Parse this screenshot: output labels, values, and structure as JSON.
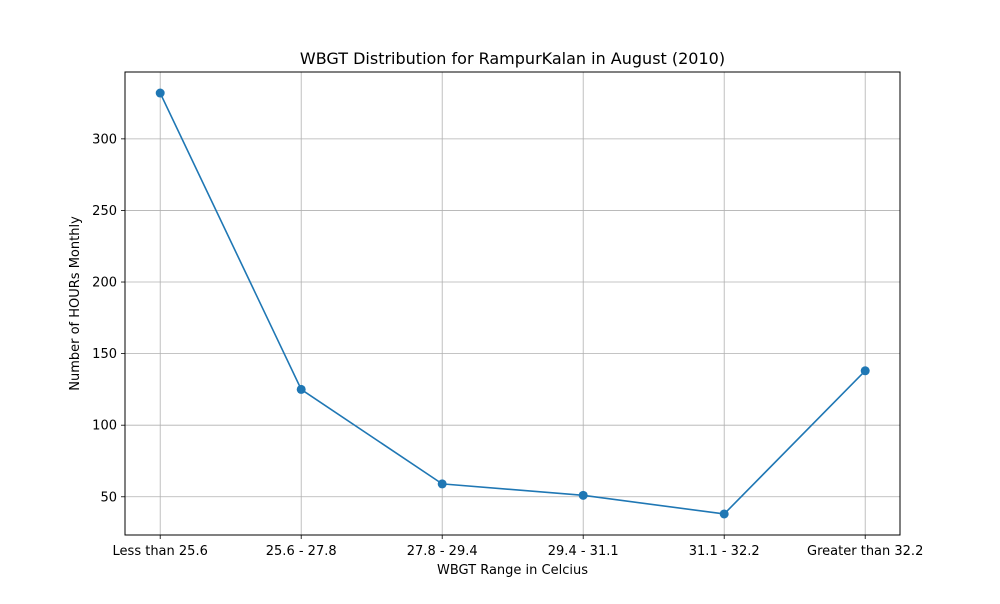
{
  "chart_data": {
    "type": "line",
    "title": "WBGT Distribution for RampurKalan in August (2010)",
    "xlabel": "WBGT Range in Celcius",
    "ylabel": "Number of HOURs Monthly",
    "categories": [
      "Less than 25.6",
      "25.6 - 27.8",
      "27.8 - 29.4",
      "29.4 - 31.1",
      "31.1 - 32.2",
      "Greater than 32.2"
    ],
    "series": [
      {
        "values": [
          332,
          125,
          59,
          51,
          38,
          138
        ],
        "color": "#1f77b4",
        "marker": "circle"
      }
    ],
    "ylim": [
      23.3,
      346.7
    ],
    "yticks": [
      50,
      100,
      150,
      200,
      250,
      300
    ],
    "grid": true,
    "legend": "none"
  }
}
